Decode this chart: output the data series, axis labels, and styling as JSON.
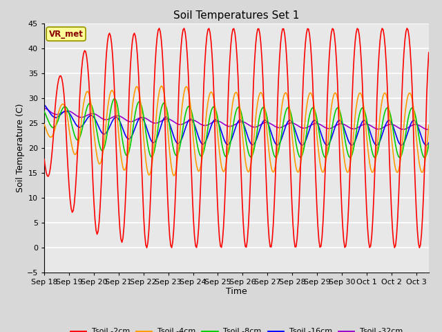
{
  "title": "Soil Temperatures Set 1",
  "xlabel": "Time",
  "ylabel": "Soil Temperature (C)",
  "ylim": [
    -5,
    45
  ],
  "xlim": [
    0,
    15.5
  ],
  "fig_bg_color": "#d8d8d8",
  "plot_bg_color": "#e8e8e8",
  "grid_color": "#ffffff",
  "label_box": "VR_met",
  "label_box_bg": "#ffff99",
  "label_box_border": "#999900",
  "label_box_text_color": "#880000",
  "x_tick_labels": [
    "Sep 18",
    "Sep 19",
    "Sep 20",
    "Sep 21",
    "Sep 22",
    "Sep 23",
    "Sep 24",
    "Sep 25",
    "Sep 26",
    "Sep 27",
    "Sep 28",
    "Sep 29",
    "Sep 30",
    "Oct 1",
    "Oct 2",
    "Oct 3"
  ],
  "y_ticks": [
    -5,
    0,
    5,
    10,
    15,
    20,
    25,
    30,
    35,
    40,
    45
  ],
  "legend_labels": [
    "Tsoil -2cm",
    "Tsoil -4cm",
    "Tsoil -8cm",
    "Tsoil -16cm",
    "Tsoil -32cm"
  ],
  "line_colors": [
    "#ff0000",
    "#ff9900",
    "#00cc00",
    "#0000ff",
    "#9900cc"
  ],
  "line_widths": [
    1.2,
    1.2,
    1.2,
    1.2,
    1.2
  ]
}
